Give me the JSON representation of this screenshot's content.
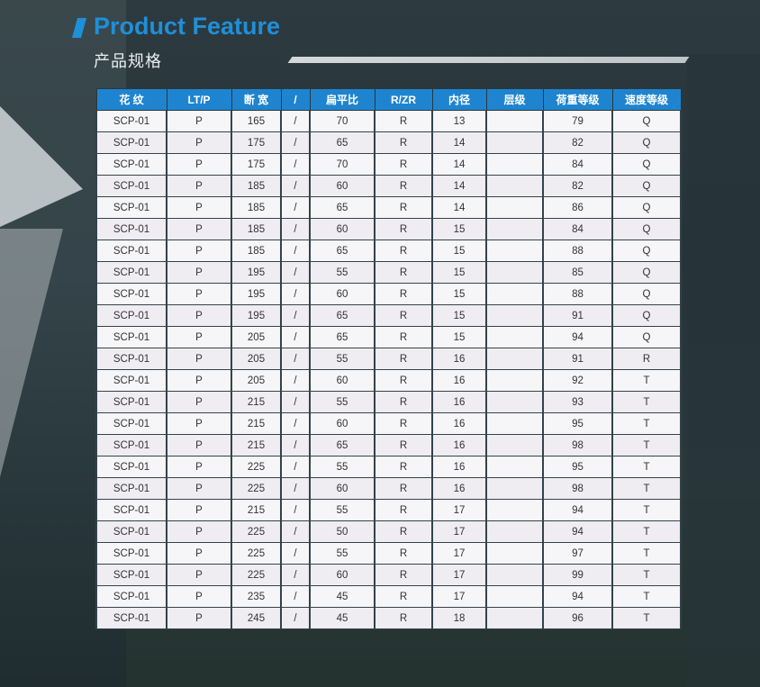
{
  "header": {
    "title": "Product Feature",
    "subtitle": "产品规格"
  },
  "table": {
    "columns": [
      "花 纹",
      "LT/P",
      "断 宽",
      "/",
      "扁平比",
      "R/ZR",
      "内径",
      "层级",
      "荷重等级",
      "速度等级"
    ],
    "rows": [
      [
        "SCP-01",
        "P",
        "165",
        "/",
        "70",
        "R",
        "13",
        "",
        "79",
        "Q"
      ],
      [
        "SCP-01",
        "P",
        "175",
        "/",
        "65",
        "R",
        "14",
        "",
        "82",
        "Q"
      ],
      [
        "SCP-01",
        "P",
        "175",
        "/",
        "70",
        "R",
        "14",
        "",
        "84",
        "Q"
      ],
      [
        "SCP-01",
        "P",
        "185",
        "/",
        "60",
        "R",
        "14",
        "",
        "82",
        "Q"
      ],
      [
        "SCP-01",
        "P",
        "185",
        "/",
        "65",
        "R",
        "14",
        "",
        "86",
        "Q"
      ],
      [
        "SCP-01",
        "P",
        "185",
        "/",
        "60",
        "R",
        "15",
        "",
        "84",
        "Q"
      ],
      [
        "SCP-01",
        "P",
        "185",
        "/",
        "65",
        "R",
        "15",
        "",
        "88",
        "Q"
      ],
      [
        "SCP-01",
        "P",
        "195",
        "/",
        "55",
        "R",
        "15",
        "",
        "85",
        "Q"
      ],
      [
        "SCP-01",
        "P",
        "195",
        "/",
        "60",
        "R",
        "15",
        "",
        "88",
        "Q"
      ],
      [
        "SCP-01",
        "P",
        "195",
        "/",
        "65",
        "R",
        "15",
        "",
        "91",
        "Q"
      ],
      [
        "SCP-01",
        "P",
        "205",
        "/",
        "65",
        "R",
        "15",
        "",
        "94",
        "Q"
      ],
      [
        "SCP-01",
        "P",
        "205",
        "/",
        "55",
        "R",
        "16",
        "",
        "91",
        "R"
      ],
      [
        "SCP-01",
        "P",
        "205",
        "/",
        "60",
        "R",
        "16",
        "",
        "92",
        "T"
      ],
      [
        "SCP-01",
        "P",
        "215",
        "/",
        "55",
        "R",
        "16",
        "",
        "93",
        "T"
      ],
      [
        "SCP-01",
        "P",
        "215",
        "/",
        "60",
        "R",
        "16",
        "",
        "95",
        "T"
      ],
      [
        "SCP-01",
        "P",
        "215",
        "/",
        "65",
        "R",
        "16",
        "",
        "98",
        "T"
      ],
      [
        "SCP-01",
        "P",
        "225",
        "/",
        "55",
        "R",
        "16",
        "",
        "95",
        "T"
      ],
      [
        "SCP-01",
        "P",
        "225",
        "/",
        "60",
        "R",
        "16",
        "",
        "98",
        "T"
      ],
      [
        "SCP-01",
        "P",
        "215",
        "/",
        "55",
        "R",
        "17",
        "",
        "94",
        "T"
      ],
      [
        "SCP-01",
        "P",
        "225",
        "/",
        "50",
        "R",
        "17",
        "",
        "94",
        "T"
      ],
      [
        "SCP-01",
        "P",
        "225",
        "/",
        "55",
        "R",
        "17",
        "",
        "97",
        "T"
      ],
      [
        "SCP-01",
        "P",
        "225",
        "/",
        "60",
        "R",
        "17",
        "",
        "99",
        "T"
      ],
      [
        "SCP-01",
        "P",
        "235",
        "/",
        "45",
        "R",
        "17",
        "",
        "94",
        "T"
      ],
      [
        "SCP-01",
        "P",
        "245",
        "/",
        "45",
        "R",
        "18",
        "",
        "96",
        "T"
      ]
    ]
  },
  "colors": {
    "accent": "#1f84cf",
    "title": "#1f8fd8",
    "background": "#2a383c"
  }
}
